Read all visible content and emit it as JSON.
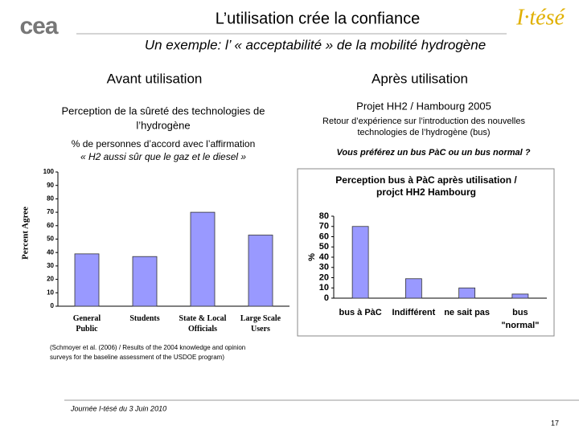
{
  "slide": {
    "logo_left": "cea",
    "logo_right": "I·tésé",
    "title": "L’utilisation crée la confiance",
    "subtitle": "Un exemple: l’ « acceptabilité » de la mobilité hydrogène",
    "left_heading": "Avant utilisation",
    "right_heading": "Après utilisation",
    "left_text": [
      "Perception de la sûreté des technologies de",
      "l’hydrogène"
    ],
    "left_caption": [
      "% de personnes d’accord avec l’affirmation",
      "« H2 aussi sûr que le gaz et le diesel »"
    ],
    "right_project": "Projet HH2 / Hambourg 2005",
    "right_text": [
      "Retour d’expérience sur l’introduction des nouvelles",
      "technologies de l’hydrogène (bus)"
    ],
    "right_question": "Vous préférez un bus PàC ou un bus normal ?",
    "citation": [
      "(Schmoyer et al. (2006) / Results of the 2004 knowledge and opinion",
      "surveys for the baseline assessment of the USDOE program)"
    ],
    "footer": "Journée I-tésé du 3 Juin 2010",
    "page_number": "17"
  },
  "chart_data": [
    {
      "type": "bar",
      "y_label": "Percent Agree",
      "categories": [
        "General\nPublic",
        "Students",
        "State & Local\nOfficials",
        "Large Scale\nUsers"
      ],
      "values": [
        39,
        37,
        70,
        53
      ],
      "color": "#9999ff",
      "ylim": [
        0,
        100
      ],
      "yticks": [
        0,
        10,
        20,
        30,
        40,
        50,
        60,
        70,
        80,
        90,
        100
      ]
    },
    {
      "type": "bar",
      "title": [
        "Perception bus à PàC après utilisation /",
        "projct HH2 Hambourg"
      ],
      "y_label": "%",
      "categories": [
        "bus à PàC",
        "Indifférent",
        "ne sait pas",
        "bus\n\"normal\""
      ],
      "values": [
        70,
        19,
        10,
        4
      ],
      "color": "#9999ff",
      "ylim": [
        0,
        80
      ],
      "yticks": [
        0,
        10,
        20,
        30,
        40,
        50,
        60,
        70,
        80
      ]
    }
  ]
}
